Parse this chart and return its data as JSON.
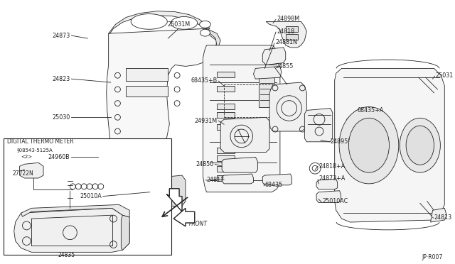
{
  "background_color": "#ffffff",
  "line_color": "#222222",
  "text_color": "#222222",
  "diagram_ref": "JP·R007",
  "digital_thermo_label": "DIGITAL THERMO METER",
  "digital_thermo_sub1": "§08543-5125A",
  "digital_thermo_sub2": "<2>",
  "figsize": [
    6.4,
    3.72
  ],
  "dpi": 100
}
